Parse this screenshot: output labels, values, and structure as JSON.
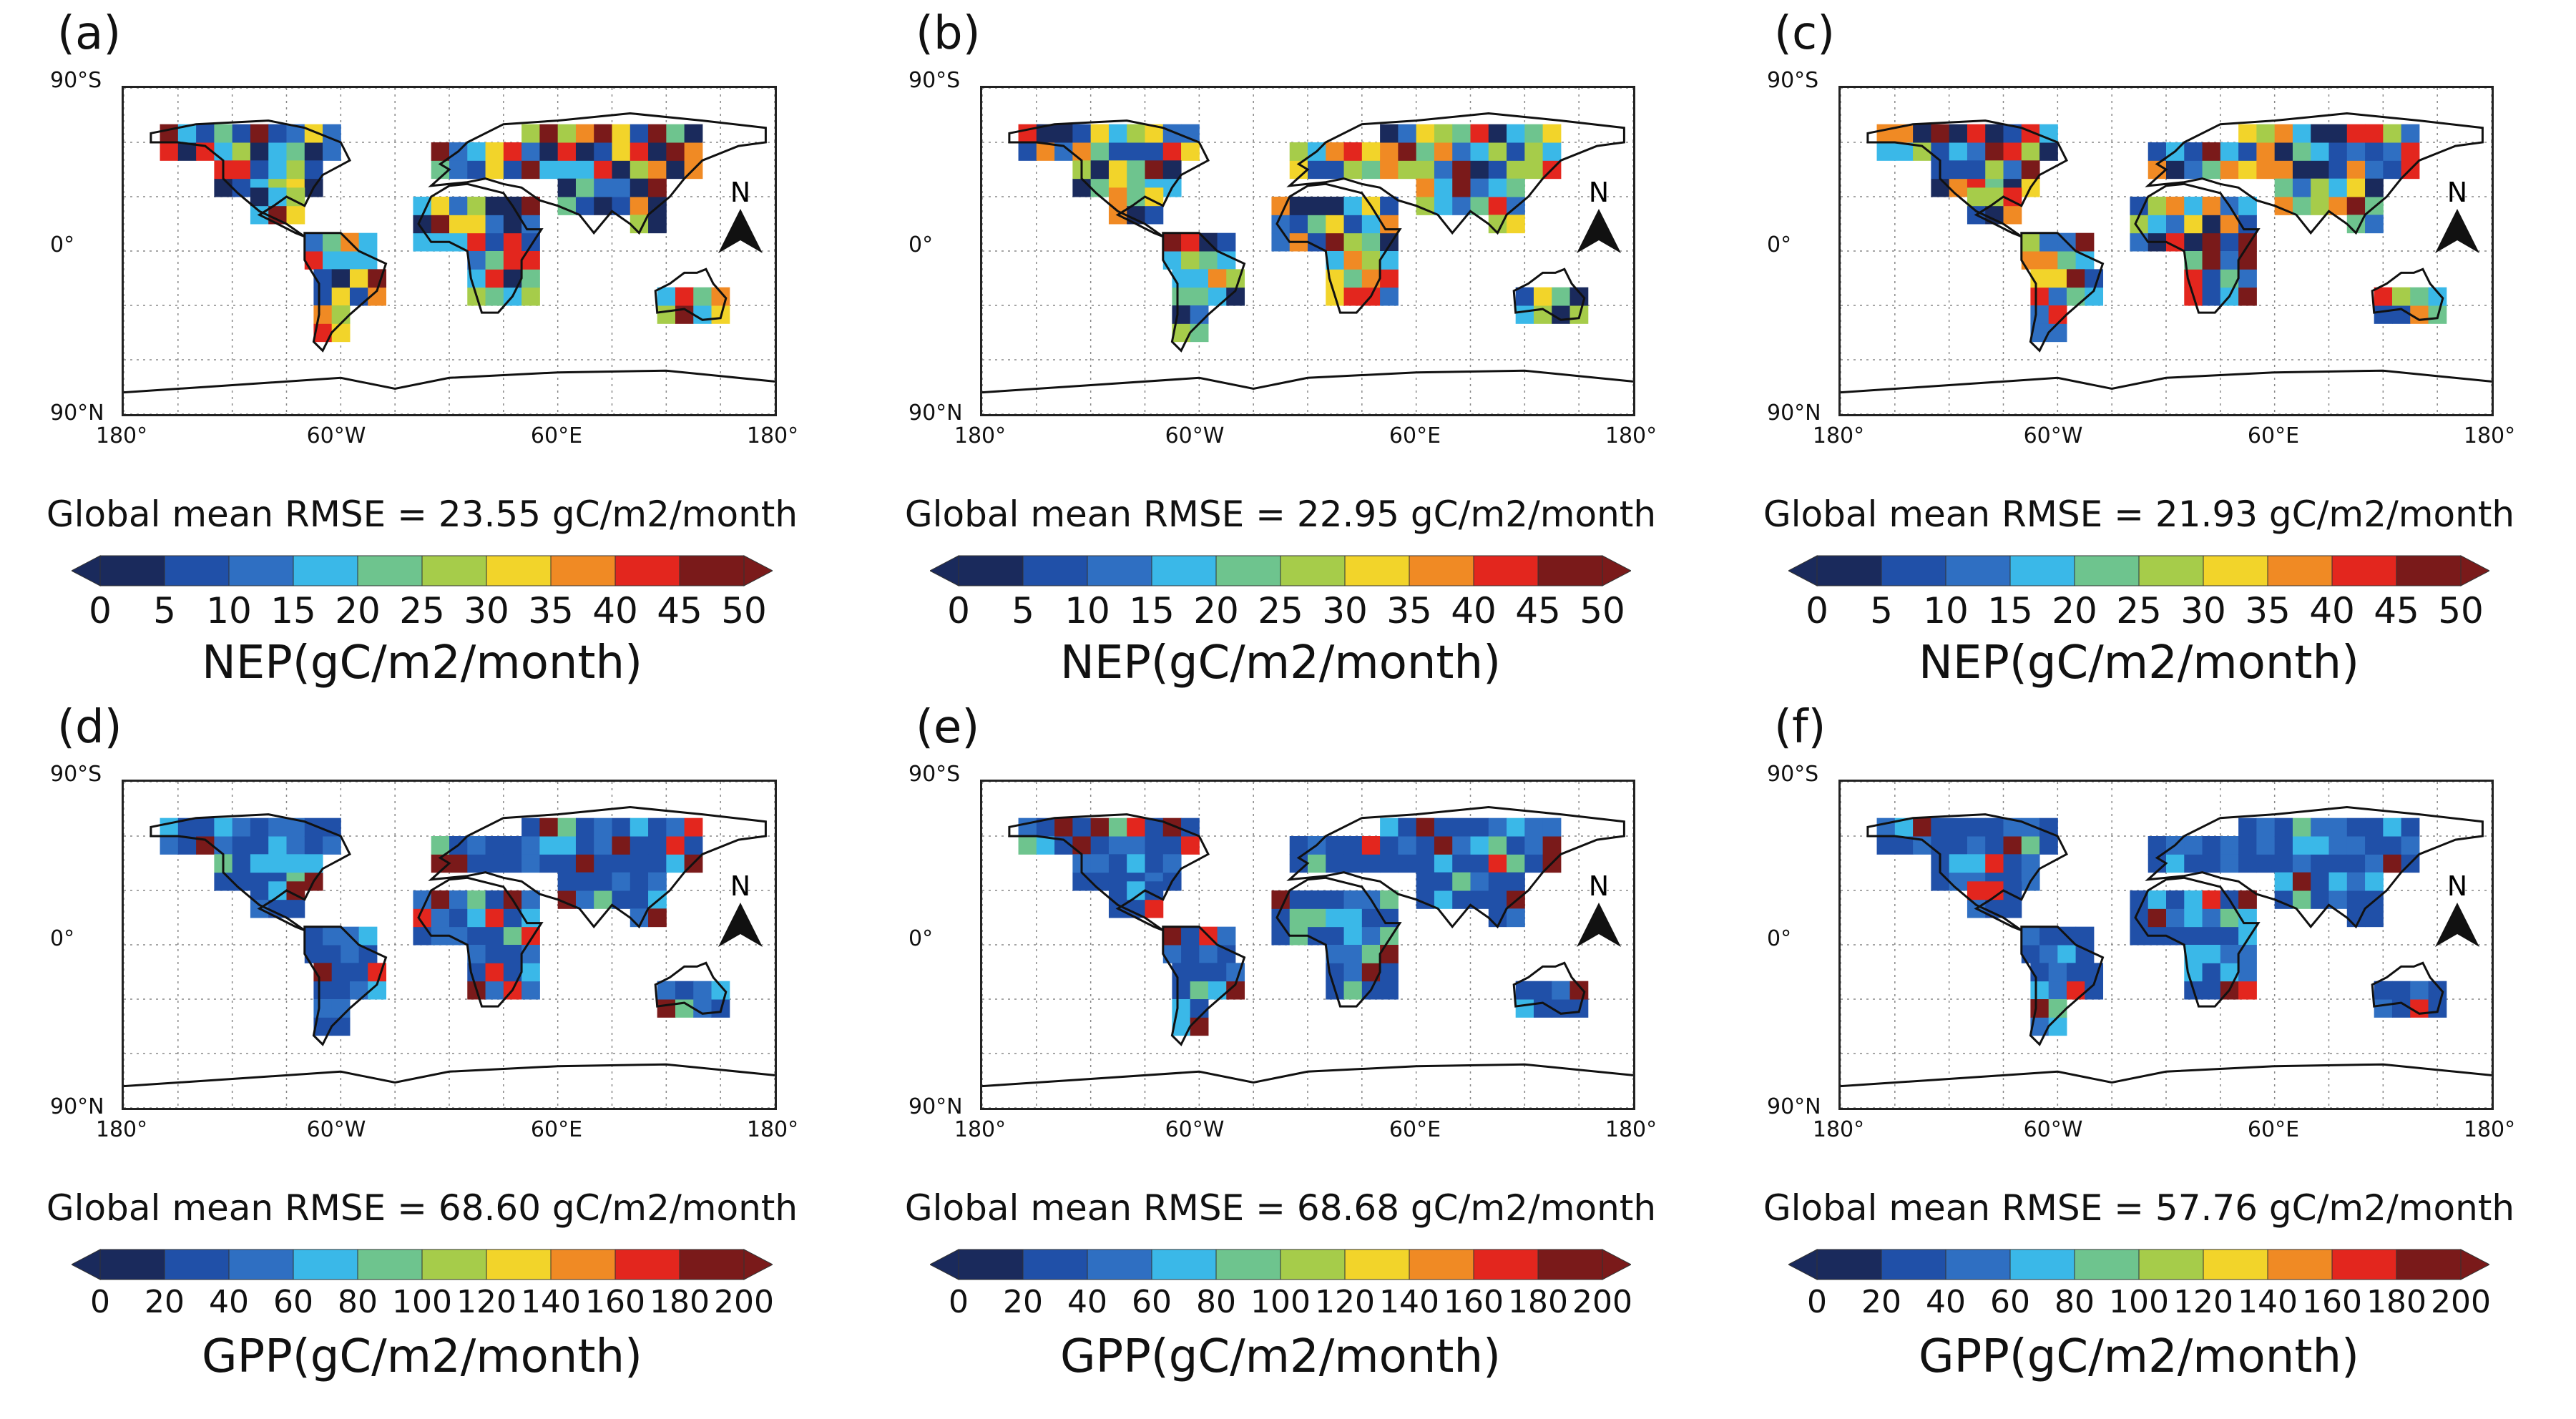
{
  "axes": {
    "lat_top": "90°S",
    "lat_mid": "0°",
    "lat_bottom": "90°N",
    "lon": [
      "180°",
      "60°W",
      "60°E",
      "180°"
    ],
    "north_label": "N"
  },
  "colors": {
    "palette": [
      "#1a2a5c",
      "#2050a8",
      "#2f6fc2",
      "#3ab8e8",
      "#6ec48e",
      "#a6cc4a",
      "#f2d42a",
      "#f08a24",
      "#e3261e",
      "#7a1a1a"
    ],
    "land_outline": "#111111",
    "grid": "#888888"
  },
  "panels": [
    {
      "label": "(a)",
      "rmse": "Global mean RMSE = 23.55 gC/m2/month",
      "variable": "NEP",
      "unit": "NEP(gC/m2/month)",
      "ticks": [
        "0",
        "5",
        "10",
        "15",
        "20",
        "25",
        "30",
        "35",
        "40",
        "45",
        "50"
      ]
    },
    {
      "label": "(b)",
      "rmse": "Global mean RMSE = 22.95 gC/m2/month",
      "variable": "NEP",
      "unit": "NEP(gC/m2/month)",
      "ticks": [
        "0",
        "5",
        "10",
        "15",
        "20",
        "25",
        "30",
        "35",
        "40",
        "45",
        "50"
      ]
    },
    {
      "label": "(c)",
      "rmse": "Global mean RMSE = 21.93 gC/m2/month",
      "variable": "NEP",
      "unit": "NEP(gC/m2/month)",
      "ticks": [
        "0",
        "5",
        "10",
        "15",
        "20",
        "25",
        "30",
        "35",
        "40",
        "45",
        "50"
      ]
    },
    {
      "label": "(d)",
      "rmse": "Global mean RMSE = 68.60 gC/m2/month",
      "variable": "GPP",
      "unit": "GPP(gC/m2/month)",
      "ticks": [
        "0",
        "20",
        "40",
        "60",
        "80",
        "100",
        "120",
        "140",
        "160",
        "180",
        "200"
      ]
    },
    {
      "label": "(e)",
      "rmse": "Global mean RMSE = 68.68 gC/m2/month",
      "variable": "GPP",
      "unit": "GPP(gC/m2/month)",
      "ticks": [
        "0",
        "20",
        "40",
        "60",
        "80",
        "100",
        "120",
        "140",
        "160",
        "180",
        "200"
      ]
    },
    {
      "label": "(f)",
      "rmse": "Global mean RMSE = 57.76 gC/m2/month",
      "variable": "GPP",
      "unit": "GPP(gC/m2/month)",
      "ticks": [
        "0",
        "20",
        "40",
        "60",
        "80",
        "100",
        "120",
        "140",
        "160",
        "180",
        "200"
      ]
    }
  ]
}
